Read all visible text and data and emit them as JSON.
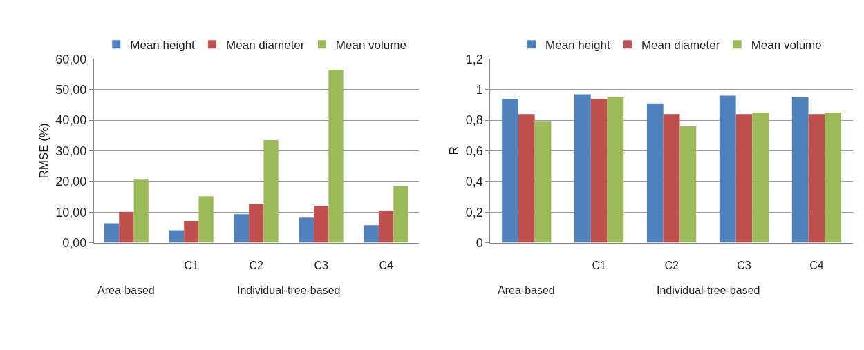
{
  "chart_data": [
    {
      "type": "bar",
      "ylabel": "RMSE (%)",
      "categories": [
        null,
        "C1",
        "C2",
        "C3",
        "C4"
      ],
      "series": [
        {
          "name": "Mean height",
          "color": "#4f81bd",
          "values": [
            6.3,
            4.1,
            9.3,
            8.2,
            5.7
          ]
        },
        {
          "name": "Mean diameter",
          "color": "#c0504d",
          "values": [
            10.1,
            7.1,
            12.7,
            12.1,
            10.5
          ]
        },
        {
          "name": "Mean volume",
          "color": "#9bbb59",
          "values": [
            20.6,
            15.2,
            33.5,
            56.5,
            18.5
          ]
        }
      ],
      "ylim": [
        0,
        60
      ],
      "yticks": [
        {
          "value": 0,
          "label": "0,00"
        },
        {
          "value": 10,
          "label": "10,00"
        },
        {
          "value": 20,
          "label": "20,00"
        },
        {
          "value": 30,
          "label": "30,00"
        },
        {
          "value": 40,
          "label": "40,00"
        },
        {
          "value": 50,
          "label": "50,00"
        },
        {
          "value": 60,
          "label": "60,00"
        }
      ],
      "grid": "y",
      "legend": "top",
      "annotations": [
        "Area-based",
        "Individual-tree-based"
      ]
    },
    {
      "type": "bar",
      "ylabel": "R",
      "categories": [
        null,
        "C1",
        "C2",
        "C3",
        "C4"
      ],
      "series": [
        {
          "name": "Mean height",
          "color": "#4f81bd",
          "values": [
            0.94,
            0.97,
            0.91,
            0.96,
            0.95
          ]
        },
        {
          "name": "Mean diameter",
          "color": "#c0504d",
          "values": [
            0.84,
            0.94,
            0.84,
            0.84,
            0.84
          ]
        },
        {
          "name": "Mean volume",
          "color": "#9bbb59",
          "values": [
            0.79,
            0.95,
            0.76,
            0.85,
            0.85
          ]
        }
      ],
      "ylim": [
        0,
        1.2
      ],
      "yticks": [
        0,
        {
          "value": 0.2,
          "label": "0,2"
        },
        {
          "value": 0.4,
          "label": "0,4"
        },
        {
          "value": 0.6,
          "label": "0,6"
        },
        {
          "value": 0.8,
          "label": "0,8"
        },
        1,
        {
          "value": 1.2,
          "label": "1,2"
        }
      ],
      "grid": "y",
      "legend": "top",
      "annotations": [
        "Area-based",
        "Individual-tree-based"
      ]
    }
  ]
}
